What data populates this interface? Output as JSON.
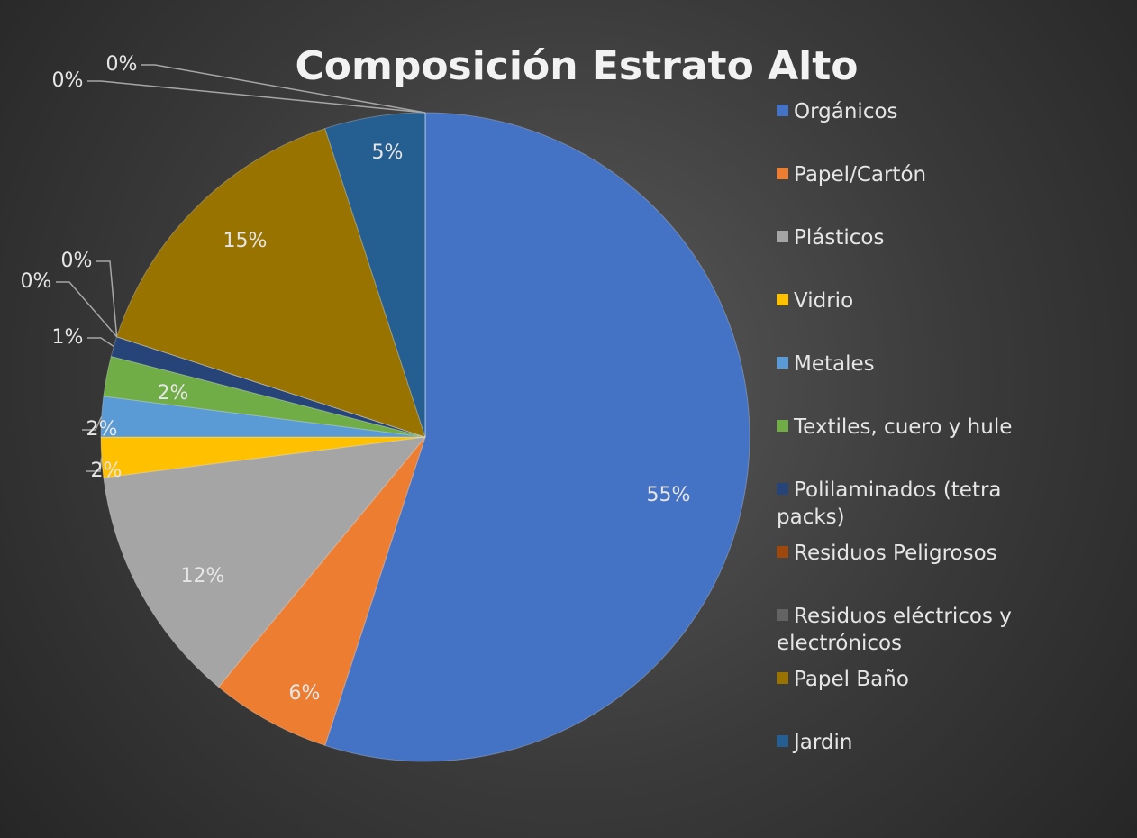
{
  "chart_data": {
    "type": "pie",
    "title": "Composición Estrato Alto",
    "categories": [
      "Orgánicos",
      "Papel/Cartón",
      "Plásticos",
      "Vidrio",
      "Metales",
      "Textiles, cuero y hule",
      "Polilaminados (tetra packs)",
      "Residuos Peligrosos",
      "Residuos eléctricos y electrónicos",
      "Papel Baño",
      "Jardin",
      null,
      null
    ],
    "values": [
      55,
      6,
      12,
      2,
      2,
      2,
      1,
      0,
      0,
      15,
      5,
      0,
      0
    ],
    "value_labels": [
      "55%",
      "6%",
      "12%",
      "2%",
      "2%",
      "2%",
      "1%",
      "0%",
      "0%",
      "15%",
      "5%",
      "0%",
      "0%"
    ],
    "colors": [
      "#4472c4",
      "#ed7d31",
      "#a5a5a5",
      "#ffc000",
      "#5b9bd5",
      "#70ad47",
      "#264478",
      "#9e480e",
      "#636363",
      "#997300",
      "#255e91",
      "#698ed0",
      "#f1975a"
    ],
    "legend": "right"
  }
}
